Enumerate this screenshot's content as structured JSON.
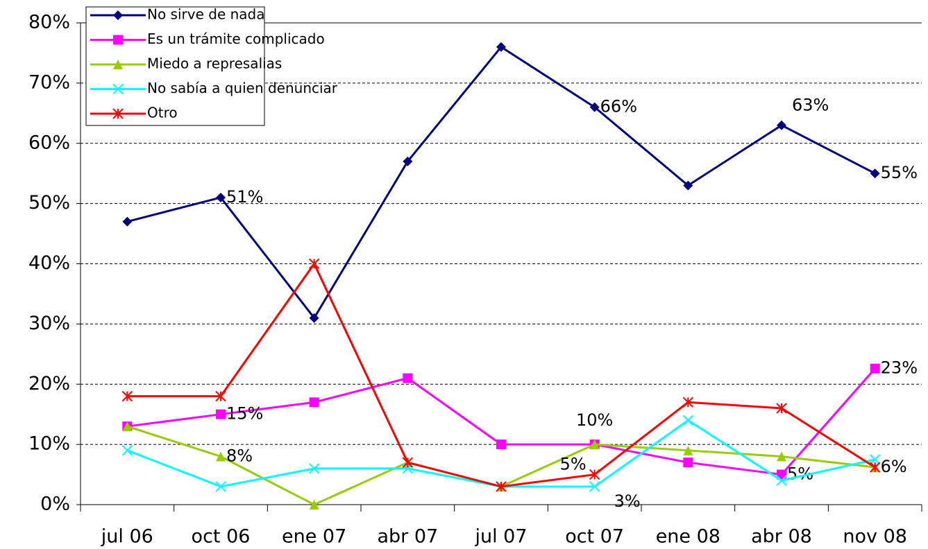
{
  "chart_data": {
    "type": "line",
    "categories": [
      "jul 06",
      "oct 06",
      "ene 07",
      "abr 07",
      "jul 07",
      "oct 07",
      "ene 08",
      "abr 08",
      "nov 08"
    ],
    "series": [
      {
        "name": "No sirve de nada",
        "color": "#000080",
        "marker": "diamond",
        "values": [
          47,
          51,
          31,
          57,
          76,
          66,
          53,
          63,
          55
        ],
        "value_labels": [
          null,
          "51%",
          null,
          null,
          null,
          "66%",
          null,
          "63%",
          "55%"
        ]
      },
      {
        "name": "Es un trámite complicado",
        "color": "#ff00ff",
        "marker": "square",
        "values": [
          13,
          15,
          17,
          21,
          10,
          10,
          7,
          5,
          22.6
        ],
        "value_labels": [
          null,
          "15%",
          null,
          null,
          null,
          null,
          null,
          "5%",
          "23%"
        ]
      },
      {
        "name": "Miedo a represalias",
        "color": "#99cc00",
        "marker": "triangle",
        "values": [
          13,
          8,
          0,
          7,
          3,
          10,
          9,
          8,
          6.2
        ],
        "value_labels": [
          null,
          "8%",
          null,
          null,
          null,
          "10%",
          null,
          null,
          "6%"
        ]
      },
      {
        "name": "No sabía a quien denunciar",
        "color": "#00ffff",
        "marker": "x",
        "values": [
          9,
          3,
          6,
          6,
          3,
          3,
          14,
          4,
          7.5
        ],
        "value_labels": [
          null,
          null,
          null,
          null,
          null,
          "3%",
          null,
          null,
          null
        ]
      },
      {
        "name": "Otro",
        "color": "#ff0000",
        "marker": "star",
        "values": [
          18,
          18,
          40,
          7,
          3,
          5,
          17,
          16,
          6.2
        ],
        "value_labels": [
          null,
          null,
          null,
          null,
          null,
          "5%",
          null,
          null,
          null
        ]
      }
    ],
    "ylim": [
      0,
      80
    ],
    "yticks": [
      {
        "value": 0,
        "label": "0%"
      },
      {
        "value": 10,
        "label": "10%"
      },
      {
        "value": 20,
        "label": "20%"
      },
      {
        "value": 30,
        "label": "30%"
      },
      {
        "value": 40,
        "label": "40%"
      },
      {
        "value": 50,
        "label": "50%"
      },
      {
        "value": 60,
        "label": "60%"
      },
      {
        "value": 70,
        "label": "70%"
      },
      {
        "value": 80,
        "label": "80%"
      }
    ],
    "grid": true,
    "legend": "top-left"
  }
}
